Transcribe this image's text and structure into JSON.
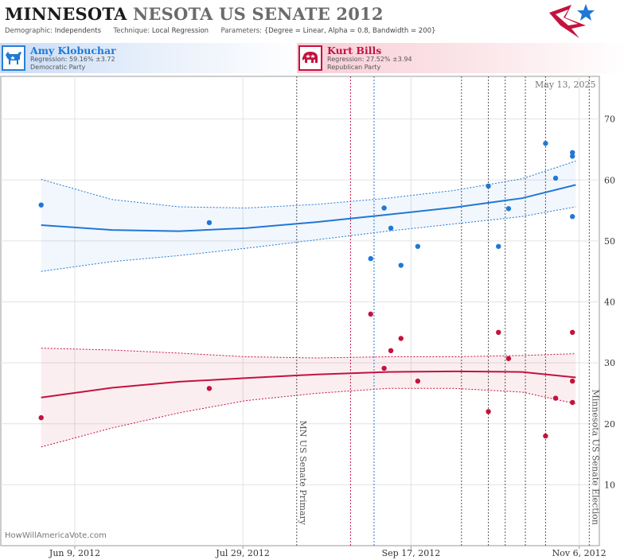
{
  "header": {
    "title_state": "MINNESOTA",
    "title_rest": "NESOTA US SENATE 2012",
    "demographic_label": "Demographic:",
    "demographic_value": "Independents",
    "technique_label": "Technique:",
    "technique_value": "Local Regression",
    "parameters_label": "Parameters:",
    "parameters_value": "{Degree = Linear, Alpha = 0.8, Bandwidth = 200}"
  },
  "candidates": {
    "dem": {
      "name": "Amy Klobuchar",
      "regression": "Regression: 59.16% ±3.72",
      "party": "Democratic Party",
      "color": "#1f78d6"
    },
    "rep": {
      "name": "Kurt Bills",
      "regression": "Regression: 27.52% ±3.94",
      "party": "Republican Party",
      "color": "#c4123f"
    }
  },
  "date_stamp": "May 13, 2025",
  "site": "HowWillAmericaVote.com",
  "logo": {
    "icon": "star-flag-icon"
  },
  "chart_data": {
    "type": "scatter",
    "x_range": [
      "2012-05-18",
      "2012-11-12"
    ],
    "ylim": [
      0,
      77
    ],
    "yticks": [
      10,
      20,
      30,
      40,
      50,
      60,
      70
    ],
    "xticks": [
      {
        "date": "2012-06-09",
        "label": "Jun 9, 2012"
      },
      {
        "date": "2012-07-29",
        "label": "Jul 29, 2012"
      },
      {
        "date": "2012-09-17",
        "label": "Sep 17, 2012"
      },
      {
        "date": "2012-11-06",
        "label": "Nov 6, 2012"
      }
    ],
    "grid": true,
    "events": [
      {
        "date": "2012-08-14",
        "label": "MN US Senate Primary",
        "color": "#555555"
      },
      {
        "date": "2012-11-09",
        "label": "Minnesota US Senate Election",
        "color": "#555555"
      }
    ],
    "markers": [
      {
        "date": "2012-08-30",
        "color": "#c4123f"
      },
      {
        "date": "2012-09-06",
        "color": "#1f78d6"
      },
      {
        "date": "2012-10-02",
        "color": "#555555"
      },
      {
        "date": "2012-10-10",
        "color": "#555555"
      },
      {
        "date": "2012-10-15",
        "color": "#555555"
      },
      {
        "date": "2012-10-21",
        "color": "#555555"
      },
      {
        "date": "2012-10-27",
        "color": "#555555"
      }
    ],
    "series": [
      {
        "name": "Amy Klobuchar",
        "color": "#1f78d6",
        "points": [
          [
            "2012-05-30",
            55.9
          ],
          [
            "2012-07-19",
            53.0
          ],
          [
            "2012-09-05",
            47.1
          ],
          [
            "2012-09-09",
            55.4
          ],
          [
            "2012-09-11",
            52.1
          ],
          [
            "2012-09-14",
            46.0
          ],
          [
            "2012-09-19",
            49.1
          ],
          [
            "2012-10-10",
            59.0
          ],
          [
            "2012-10-13",
            49.1
          ],
          [
            "2012-10-16",
            55.3
          ],
          [
            "2012-10-27",
            66.0
          ],
          [
            "2012-10-30",
            60.3
          ],
          [
            "2012-11-04",
            64.5
          ],
          [
            "2012-11-04",
            63.9
          ],
          [
            "2012-11-04",
            54.0
          ]
        ],
        "fit": [
          [
            "2012-05-30",
            52.6
          ],
          [
            "2012-06-20",
            51.8
          ],
          [
            "2012-07-10",
            51.6
          ],
          [
            "2012-07-30",
            52.1
          ],
          [
            "2012-08-20",
            53.1
          ],
          [
            "2012-09-10",
            54.3
          ],
          [
            "2012-09-30",
            55.5
          ],
          [
            "2012-10-20",
            57.0
          ],
          [
            "2012-11-05",
            59.2
          ]
        ],
        "upper": [
          [
            "2012-05-30",
            60.1
          ],
          [
            "2012-06-20",
            56.8
          ],
          [
            "2012-07-10",
            55.6
          ],
          [
            "2012-07-30",
            55.4
          ],
          [
            "2012-08-20",
            56.0
          ],
          [
            "2012-09-10",
            57.0
          ],
          [
            "2012-09-30",
            58.3
          ],
          [
            "2012-10-20",
            60.2
          ],
          [
            "2012-11-05",
            63.1
          ]
        ],
        "lower": [
          [
            "2012-05-30",
            45.0
          ],
          [
            "2012-06-20",
            46.6
          ],
          [
            "2012-07-10",
            47.6
          ],
          [
            "2012-07-30",
            48.8
          ],
          [
            "2012-08-20",
            50.2
          ],
          [
            "2012-09-10",
            51.6
          ],
          [
            "2012-09-30",
            52.8
          ],
          [
            "2012-10-20",
            54.0
          ],
          [
            "2012-11-05",
            55.6
          ]
        ]
      },
      {
        "name": "Kurt Bills",
        "color": "#c4123f",
        "points": [
          [
            "2012-05-30",
            21.0
          ],
          [
            "2012-07-19",
            25.8
          ],
          [
            "2012-09-05",
            38.0
          ],
          [
            "2012-09-09",
            29.1
          ],
          [
            "2012-09-11",
            32.0
          ],
          [
            "2012-09-14",
            34.0
          ],
          [
            "2012-09-19",
            27.0
          ],
          [
            "2012-10-10",
            22.0
          ],
          [
            "2012-10-13",
            35.0
          ],
          [
            "2012-10-16",
            30.7
          ],
          [
            "2012-10-27",
            18.0
          ],
          [
            "2012-10-30",
            24.2
          ],
          [
            "2012-11-04",
            35.0
          ],
          [
            "2012-11-04",
            27.0
          ],
          [
            "2012-11-04",
            23.5
          ]
        ],
        "fit": [
          [
            "2012-05-30",
            24.3
          ],
          [
            "2012-06-20",
            25.9
          ],
          [
            "2012-07-10",
            26.9
          ],
          [
            "2012-07-30",
            27.5
          ],
          [
            "2012-08-20",
            28.1
          ],
          [
            "2012-09-10",
            28.5
          ],
          [
            "2012-09-30",
            28.6
          ],
          [
            "2012-10-20",
            28.5
          ],
          [
            "2012-11-05",
            27.6
          ]
        ],
        "upper": [
          [
            "2012-05-30",
            32.4
          ],
          [
            "2012-06-20",
            32.1
          ],
          [
            "2012-07-10",
            31.6
          ],
          [
            "2012-07-30",
            31.0
          ],
          [
            "2012-08-20",
            30.8
          ],
          [
            "2012-09-10",
            31.0
          ],
          [
            "2012-09-30",
            31.0
          ],
          [
            "2012-10-20",
            31.2
          ],
          [
            "2012-11-05",
            31.5
          ]
        ],
        "lower": [
          [
            "2012-05-30",
            16.2
          ],
          [
            "2012-06-20",
            19.3
          ],
          [
            "2012-07-10",
            21.8
          ],
          [
            "2012-07-30",
            23.8
          ],
          [
            "2012-08-20",
            25.0
          ],
          [
            "2012-09-10",
            25.8
          ],
          [
            "2012-09-30",
            25.8
          ],
          [
            "2012-10-20",
            25.2
          ],
          [
            "2012-11-05",
            23.3
          ]
        ]
      }
    ]
  }
}
